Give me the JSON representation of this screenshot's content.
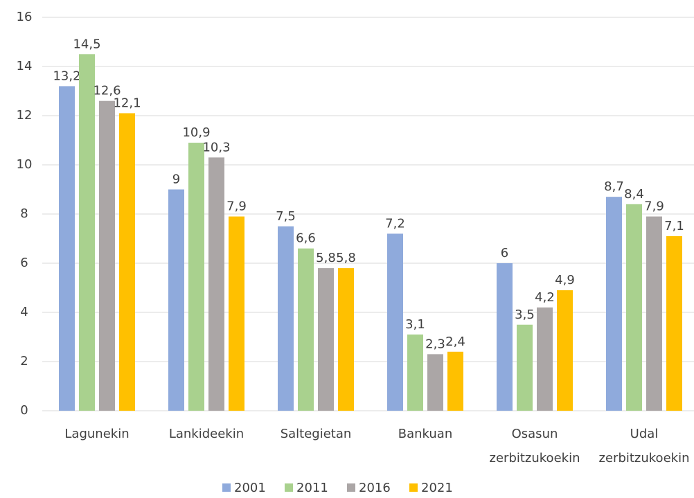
{
  "chart_data": {
    "type": "bar",
    "categories": [
      "Lagunekin",
      "Lankideekin",
      "Saltegietan",
      "Bankuan",
      "Osasun zerbitzukoekin",
      "Udal zerbitzukoekin"
    ],
    "series": [
      {
        "name": "2001",
        "color": "#8faadc",
        "values": [
          13.2,
          9,
          7.5,
          7.2,
          6,
          8.7
        ],
        "value_labels": [
          "13,2",
          "9",
          "7,5",
          "7,2",
          "6",
          "8,7"
        ]
      },
      {
        "name": "2011",
        "color": "#a9d18e",
        "values": [
          14.5,
          10.9,
          6.6,
          3.1,
          3.5,
          8.4
        ],
        "value_labels": [
          "14,5",
          "10,9",
          "6,6",
          "3,1",
          "3,5",
          "8,4"
        ]
      },
      {
        "name": "2016",
        "color": "#aba6a6",
        "values": [
          12.6,
          10.3,
          5.8,
          2.3,
          4.2,
          7.9
        ],
        "value_labels": [
          "12,6",
          "10,3",
          "5,8",
          "2,3",
          "4,2",
          "7,9"
        ]
      },
      {
        "name": "2021",
        "color": "#ffc000",
        "values": [
          12.1,
          7.9,
          5.8,
          2.4,
          4.9,
          7.1
        ],
        "value_labels": [
          "12,1",
          "7,9",
          "5,8",
          "2,4",
          "4,9",
          "7,1"
        ]
      }
    ],
    "ylim": [
      0,
      16
    ],
    "yticks": [
      0,
      2,
      4,
      6,
      8,
      10,
      12,
      14,
      16
    ],
    "grid": true,
    "legend": "bottom"
  }
}
